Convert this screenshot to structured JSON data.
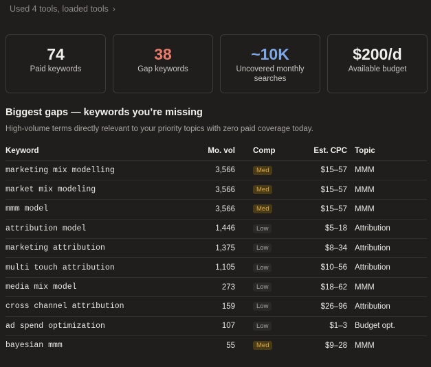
{
  "tools_line": {
    "label": "Used 4 tools, loaded tools",
    "chevron": "›"
  },
  "stats": [
    {
      "value": "74",
      "label": "Paid keywords",
      "color": "#f1efea"
    },
    {
      "value": "38",
      "label": "Gap keywords",
      "color": "#ec7a6b"
    },
    {
      "value": "~10K",
      "label": "Uncovered monthly searches",
      "color": "#7ea7e6"
    },
    {
      "value": "$200/d",
      "label": "Available budget",
      "color": "#f1efea"
    }
  ],
  "section": {
    "title": "Biggest gaps — keywords you’re missing",
    "subtitle": "High-volume terms directly relevant to your priority topics with zero paid coverage today."
  },
  "table": {
    "headers": {
      "keyword": "Keyword",
      "vol": "Mo. vol",
      "comp": "Comp",
      "cpc": "Est. CPC",
      "topic": "Topic"
    },
    "rows": [
      {
        "keyword": "marketing mix modelling",
        "vol": "3,566",
        "comp": "Med",
        "cpc": "$15–57",
        "topic": "MMM"
      },
      {
        "keyword": "market mix modeling",
        "vol": "3,566",
        "comp": "Med",
        "cpc": "$15–57",
        "topic": "MMM"
      },
      {
        "keyword": "mmm model",
        "vol": "3,566",
        "comp": "Med",
        "cpc": "$15–57",
        "topic": "MMM"
      },
      {
        "keyword": "attribution model",
        "vol": "1,446",
        "comp": "Low",
        "cpc": "$5–18",
        "topic": "Attribution"
      },
      {
        "keyword": "marketing attribution",
        "vol": "1,375",
        "comp": "Low",
        "cpc": "$8–34",
        "topic": "Attribution"
      },
      {
        "keyword": "multi touch attribution",
        "vol": "1,105",
        "comp": "Low",
        "cpc": "$10–56",
        "topic": "Attribution"
      },
      {
        "keyword": "media mix model",
        "vol": "273",
        "comp": "Low",
        "cpc": "$18–62",
        "topic": "MMM"
      },
      {
        "keyword": "cross channel attribution",
        "vol": "159",
        "comp": "Low",
        "cpc": "$26–96",
        "topic": "Attribution"
      },
      {
        "keyword": "ad spend optimization",
        "vol": "107",
        "comp": "Low",
        "cpc": "$1–3",
        "topic": "Budget opt."
      },
      {
        "keyword": "bayesian mmm",
        "vol": "55",
        "comp": "Med",
        "cpc": "$9–28",
        "topic": "MMM"
      }
    ]
  }
}
